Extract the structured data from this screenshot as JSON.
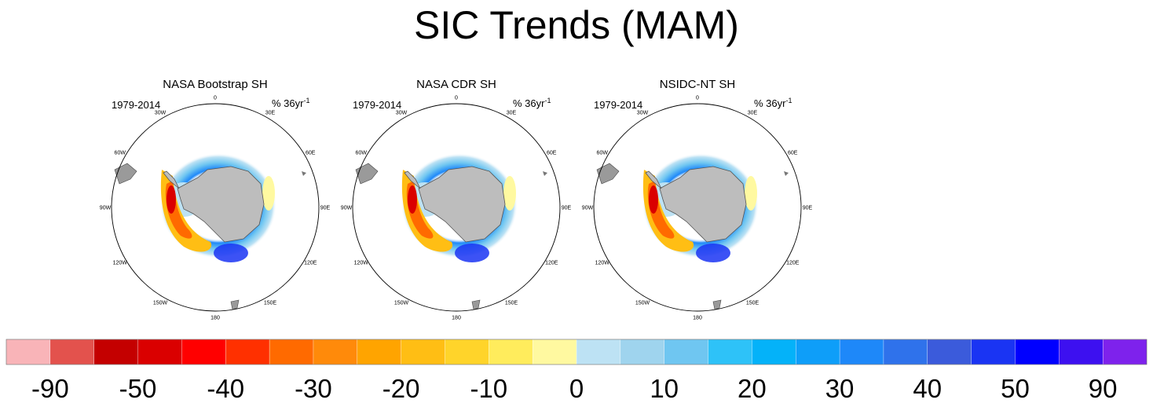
{
  "title": "SIC Trends (MAM)",
  "chart_data": {
    "type": "map",
    "panels": [
      {
        "title": "NASA Bootstrap SH",
        "period": "1979-2014",
        "units": "% 36yr",
        "units_exp": "-1"
      },
      {
        "title": "NASA CDR SH",
        "period": "1979-2014",
        "units": "% 36yr",
        "units_exp": "-1"
      },
      {
        "title": "NSIDC-NT SH",
        "period": "1979-2014",
        "units": "% 36yr",
        "units_exp": "-1"
      }
    ],
    "longitude_labels": [
      "0",
      "30E",
      "60E",
      "90E",
      "120E",
      "150E",
      "180",
      "150W",
      "120W",
      "90W",
      "60W",
      "30W"
    ],
    "colorbar": {
      "colors": [
        "#f9b4b8",
        "#e3524d",
        "#c40000",
        "#da0000",
        "#ff0000",
        "#ff3000",
        "#ff6a00",
        "#ff8a0a",
        "#ffa400",
        "#ffbe14",
        "#ffd42a",
        "#ffec5c",
        "#fff9a0",
        "#bde2f4",
        "#9fd4ee",
        "#6fc6f1",
        "#2ec2f8",
        "#04b2f9",
        "#0e9ef9",
        "#1e88f9",
        "#2f72eb",
        "#3b5bdb",
        "#1a34f3",
        "#0000ff",
        "#3d10f0",
        "#7e22ec"
      ],
      "labels": [
        "-90",
        "-50",
        "-40",
        "-30",
        "-20",
        "-10",
        "0",
        "10",
        "20",
        "30",
        "40",
        "50",
        "90"
      ]
    }
  }
}
